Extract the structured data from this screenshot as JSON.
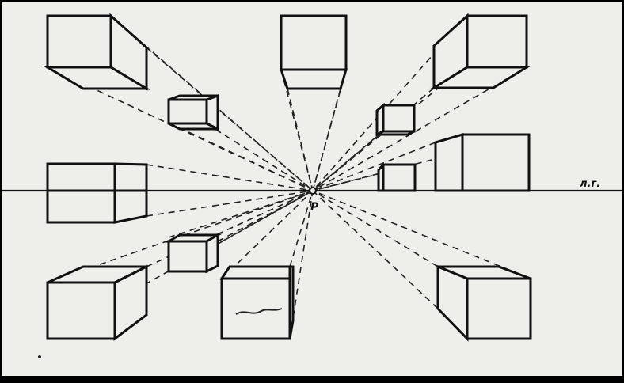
{
  "labels": {
    "vanishing_point": "P",
    "horizon_line": "л.г."
  }
}
